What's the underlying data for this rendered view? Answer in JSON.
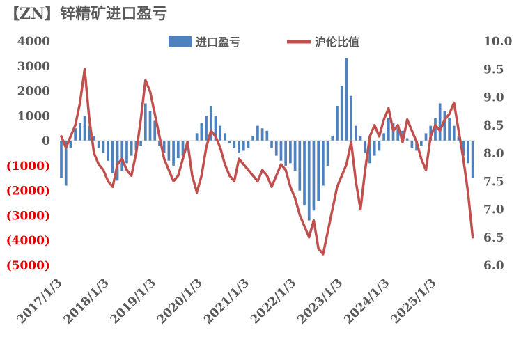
{
  "chart_data": {
    "type": "bar+line",
    "title": "【ZN】锌精矿进口盈亏",
    "x_tick_labels": [
      "2017/1/3",
      "2018/1/3",
      "2019/1/3",
      "2020/1/3",
      "2021/1/3",
      "2022/1/3",
      "2023/1/3",
      "2024/1/3",
      "2025/1/3"
    ],
    "left_axis": {
      "ylim": [
        -5000,
        4000
      ],
      "tick_labels": [
        "4000",
        "3000",
        "2000",
        "1000",
        "0",
        "(1000)",
        "(2000)",
        "(3000)",
        "(4000)",
        "(5000)"
      ],
      "negative_label_color": "#e00000",
      "positive_label_color": "#595959"
    },
    "right_axis": {
      "ylim": [
        6.0,
        10.0
      ],
      "tick_labels": [
        "10.0",
        "9.5",
        "9.0",
        "8.5",
        "8.0",
        "7.5",
        "7.0",
        "6.5",
        "6.0"
      ]
    },
    "series": [
      {
        "name": "进口盈亏",
        "kind": "bar",
        "axis": "left",
        "color": "#4f81bd",
        "x": [
          2017.0,
          2017.1,
          2017.2,
          2017.3,
          2017.4,
          2017.5,
          2017.6,
          2017.7,
          2017.8,
          2017.9,
          2018.0,
          2018.1,
          2018.2,
          2018.3,
          2018.4,
          2018.5,
          2018.6,
          2018.7,
          2018.8,
          2018.9,
          2019.0,
          2019.1,
          2019.2,
          2019.3,
          2019.4,
          2019.5,
          2019.6,
          2019.7,
          2019.8,
          2019.9,
          2020.0,
          2020.1,
          2020.2,
          2020.3,
          2020.4,
          2020.5,
          2020.6,
          2020.7,
          2020.8,
          2020.9,
          2021.0,
          2021.1,
          2021.2,
          2021.3,
          2021.4,
          2021.5,
          2021.6,
          2021.7,
          2021.8,
          2021.9,
          2022.0,
          2022.1,
          2022.2,
          2022.3,
          2022.4,
          2022.5,
          2022.6,
          2022.7,
          2022.8,
          2022.9,
          2023.0,
          2023.1,
          2023.2,
          2023.3,
          2023.4,
          2023.5,
          2023.6,
          2023.7,
          2023.8,
          2023.9,
          2024.0,
          2024.1,
          2024.2,
          2024.3,
          2024.4,
          2024.5,
          2024.6,
          2024.7,
          2024.8,
          2024.9,
          2025.0,
          2025.1,
          2025.2,
          2025.3,
          2025.4,
          2025.5,
          2025.6,
          2025.7,
          2025.8
        ],
        "values": [
          -1500,
          -1800,
          -300,
          500,
          700,
          1000,
          600,
          200,
          -300,
          -500,
          -800,
          -1300,
          -1600,
          -1200,
          -900,
          -600,
          -400,
          -200,
          1500,
          1200,
          800,
          -200,
          -500,
          -800,
          -1000,
          -700,
          -600,
          -400,
          0,
          300,
          700,
          1000,
          1400,
          1000,
          600,
          300,
          -100,
          -300,
          -500,
          -400,
          -300,
          200,
          600,
          500,
          400,
          -300,
          -600,
          -800,
          -1000,
          -900,
          -1200,
          -2000,
          -2600,
          -3200,
          -2800,
          -2400,
          -1800,
          -1000,
          200,
          1400,
          2200,
          3300,
          1800,
          600,
          200,
          -500,
          -900,
          -600,
          -400,
          300,
          900,
          700,
          500,
          400,
          100,
          -300,
          -400,
          -200,
          300,
          600,
          900,
          1500,
          1200,
          900,
          600,
          200,
          -600,
          -900,
          -1500
        ]
      },
      {
        "name": "沪伦比值",
        "kind": "line",
        "axis": "right",
        "color": "#c0504d",
        "x": [
          2017.0,
          2017.1,
          2017.2,
          2017.3,
          2017.4,
          2017.5,
          2017.6,
          2017.7,
          2017.8,
          2017.9,
          2018.0,
          2018.1,
          2018.2,
          2018.3,
          2018.4,
          2018.5,
          2018.6,
          2018.7,
          2018.8,
          2018.9,
          2019.0,
          2019.1,
          2019.2,
          2019.3,
          2019.4,
          2019.5,
          2019.6,
          2019.7,
          2019.8,
          2019.9,
          2020.0,
          2020.1,
          2020.2,
          2020.3,
          2020.4,
          2020.5,
          2020.6,
          2020.7,
          2020.8,
          2020.9,
          2021.0,
          2021.1,
          2021.2,
          2021.3,
          2021.4,
          2021.5,
          2021.6,
          2021.7,
          2021.8,
          2021.9,
          2022.0,
          2022.1,
          2022.2,
          2022.3,
          2022.4,
          2022.5,
          2022.6,
          2022.7,
          2022.8,
          2022.9,
          2023.0,
          2023.1,
          2023.2,
          2023.3,
          2023.4,
          2023.5,
          2023.6,
          2023.7,
          2023.8,
          2023.9,
          2024.0,
          2024.1,
          2024.2,
          2024.3,
          2024.4,
          2024.5,
          2024.6,
          2024.7,
          2024.8,
          2024.9,
          2025.0,
          2025.1,
          2025.2,
          2025.3,
          2025.4,
          2025.5,
          2025.6,
          2025.7,
          2025.8
        ],
        "values": [
          8.3,
          8.1,
          8.3,
          8.5,
          8.9,
          9.5,
          8.6,
          8.0,
          7.8,
          7.7,
          7.5,
          7.4,
          7.8,
          7.9,
          7.7,
          7.6,
          8.0,
          8.6,
          9.3,
          9.1,
          8.7,
          8.3,
          7.9,
          7.7,
          7.5,
          7.6,
          7.9,
          8.2,
          7.6,
          7.3,
          7.6,
          8.1,
          8.4,
          8.3,
          8.1,
          7.8,
          7.6,
          7.5,
          7.9,
          7.8,
          7.7,
          7.6,
          7.5,
          7.7,
          7.6,
          7.4,
          7.6,
          7.8,
          7.7,
          7.4,
          7.2,
          6.9,
          6.7,
          6.5,
          6.8,
          6.3,
          6.2,
          6.6,
          7.0,
          7.4,
          7.6,
          7.8,
          8.2,
          7.5,
          7.0,
          7.7,
          8.3,
          8.5,
          8.3,
          8.6,
          8.8,
          8.4,
          8.5,
          8.2,
          8.6,
          8.4,
          8.2,
          7.9,
          7.7,
          8.3,
          8.5,
          8.4,
          8.6,
          8.7,
          8.9,
          8.4,
          7.9,
          7.3,
          6.5
        ]
      }
    ],
    "legend": {
      "placement": "top",
      "items": [
        {
          "label": "进口盈亏",
          "marker": "rect",
          "color": "#4f81bd"
        },
        {
          "label": "沪伦比值",
          "marker": "line",
          "color": "#c0504d"
        }
      ]
    }
  }
}
